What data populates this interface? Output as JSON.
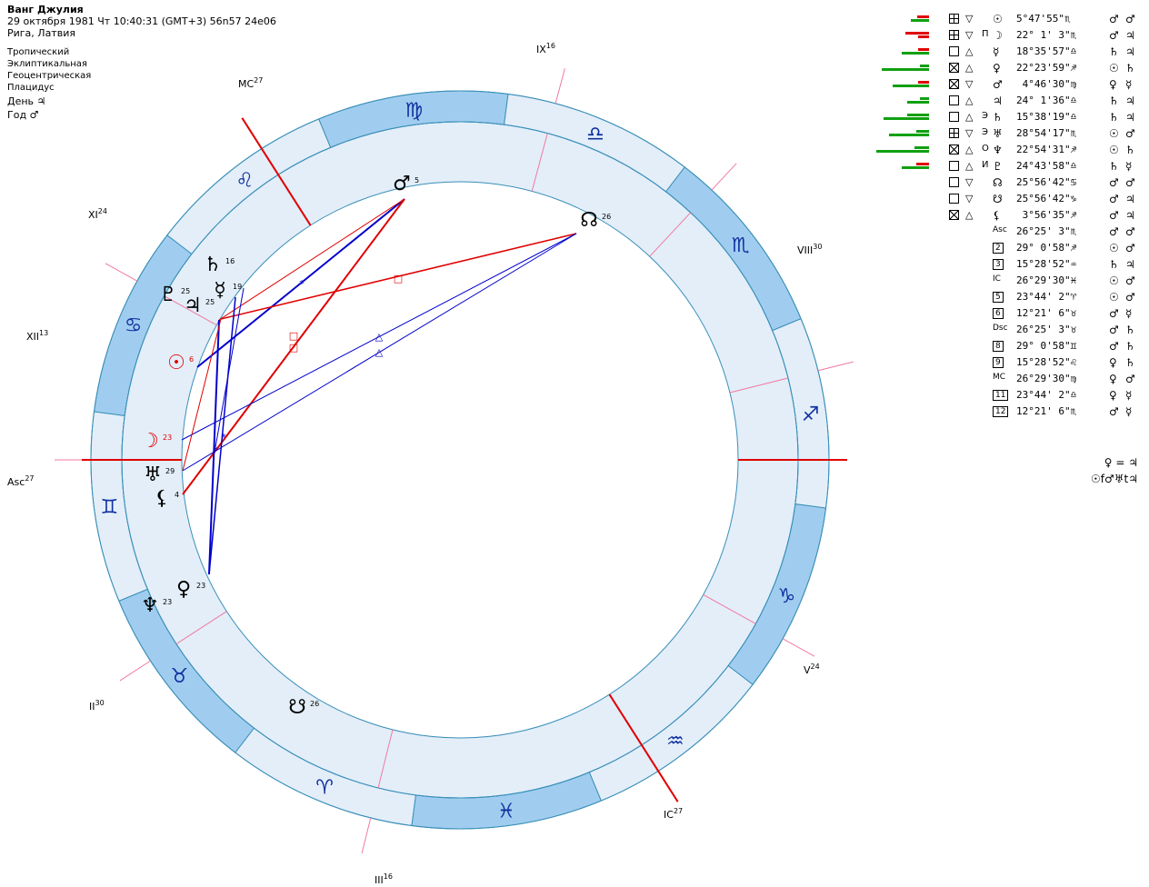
{
  "header": {
    "name": "Ванг Джулия",
    "datetime": "29 октября 1981  Чт  10:40:31 (GMT+3) 56n57  24e06",
    "place": "Рига, Латвия",
    "settings": [
      "Тропический",
      "Эклиптикальная",
      "Геоцентрическая",
      "Плацидус"
    ],
    "day_label": "День ♃",
    "year_label": "Год ♂"
  },
  "wheel": {
    "signs": [
      "♍",
      "♌",
      "♋",
      "♊",
      "♉",
      "♈",
      "♓",
      "♒",
      "♑",
      "♐",
      "♏",
      "♎"
    ],
    "cusps": [
      {
        "label": "Asc",
        "deg": "27"
      },
      {
        "label": "II",
        "deg": "30"
      },
      {
        "label": "III",
        "deg": "16"
      },
      {
        "label": "IC",
        "deg": "27"
      },
      {
        "label": "V",
        "deg": "24"
      },
      {
        "label": "VIII",
        "deg": "30"
      },
      {
        "label": "IX",
        "deg": "16"
      },
      {
        "label": "MC",
        "deg": "27"
      },
      {
        "label": "XI",
        "deg": "24"
      },
      {
        "label": "XII",
        "deg": "13"
      }
    ],
    "planets": [
      {
        "glyph": "♂",
        "deg": "5",
        "color": "#000000"
      },
      {
        "glyph": "☊",
        "deg": "26",
        "color": "#000000"
      },
      {
        "glyph": "♄",
        "deg": "16",
        "color": "#000000"
      },
      {
        "glyph": "♇",
        "deg": "25",
        "color": "#000000"
      },
      {
        "glyph": "♃",
        "deg": "25",
        "color": "#000000"
      },
      {
        "glyph": "☿",
        "deg": "19",
        "color": "#000000"
      },
      {
        "glyph": "☉",
        "deg": "6",
        "color": "#e00000"
      },
      {
        "glyph": "☽",
        "deg": "23",
        "color": "#e00000"
      },
      {
        "glyph": "♅",
        "deg": "29",
        "color": "#000000"
      },
      {
        "glyph": "⚸",
        "deg": "4",
        "color": "#000000"
      },
      {
        "glyph": "♀",
        "deg": "23",
        "color": "#000000"
      },
      {
        "glyph": "♆",
        "deg": "23",
        "color": "#000000"
      },
      {
        "glyph": "☋",
        "deg": "26",
        "color": "#000000"
      }
    ],
    "aspect_glyphs": [
      "*",
      "□",
      "□",
      "□",
      "△",
      "△",
      "*",
      "*"
    ]
  },
  "table": {
    "planets": [
      {
        "box": "cross",
        "tri": "▽",
        "mark": "",
        "glyph": "☉",
        "pos": "5°47'55\"♏",
        "r1": "♂",
        "r2": "♂"
      },
      {
        "box": "cross",
        "tri": "▽",
        "mark": "П",
        "glyph": "☽",
        "pos": "22° 1' 3\"♏",
        "r1": "♂",
        "r2": "♃"
      },
      {
        "box": "plain",
        "tri": "△",
        "mark": "",
        "glyph": "☿",
        "pos": "18°35'57\"♎",
        "r1": "♄",
        "r2": "♃"
      },
      {
        "box": "x",
        "tri": "△",
        "mark": "",
        "glyph": "♀",
        "pos": "22°23'59\"♐",
        "r1": "☉",
        "r2": "♄"
      },
      {
        "box": "x",
        "tri": "▽",
        "mark": "",
        "glyph": "♂",
        "pos": " 4°46'30\"♍",
        "r1": "♀",
        "r2": "☿"
      },
      {
        "box": "plain",
        "tri": "△",
        "mark": "",
        "glyph": "♃",
        "pos": "24° 1'36\"♎",
        "r1": "♄",
        "r2": "♃"
      },
      {
        "box": "plain",
        "tri": "△",
        "mark": "Э",
        "glyph": "♄",
        "pos": "15°38'19\"♎",
        "r1": "♄",
        "r2": "♃"
      },
      {
        "box": "cross",
        "tri": "▽",
        "mark": "Э",
        "glyph": "♅",
        "pos": "28°54'17\"♏",
        "r1": "☉",
        "r2": "♂"
      },
      {
        "box": "x",
        "tri": "△",
        "mark": "О",
        "glyph": "♆",
        "pos": "22°54'31\"♐",
        "r1": "☉",
        "r2": "♄"
      },
      {
        "box": "plain",
        "tri": "△",
        "mark": "И",
        "glyph": "♇",
        "pos": "24°43'58\"♎",
        "r1": "♄",
        "r2": "☿"
      },
      {
        "box": "plain",
        "tri": "▽",
        "mark": "",
        "glyph": "☊",
        "pos": "25°56'42\"♋",
        "r1": "♂",
        "r2": "♂"
      },
      {
        "box": "plain",
        "tri": "▽",
        "mark": "",
        "glyph": "☋",
        "pos": "25°56'42\"♑",
        "r1": "♂",
        "r2": "♃"
      },
      {
        "box": "x",
        "tri": "△",
        "mark": "",
        "glyph": "⚸",
        "pos": " 3°56'35\"♐",
        "r1": "♂",
        "r2": "♃"
      }
    ],
    "cusps": [
      {
        "label": "Asc",
        "boxed": false,
        "pos": "26°25' 3\"♏",
        "r1": "♂",
        "r2": "♂"
      },
      {
        "label": "2",
        "boxed": true,
        "pos": "29° 0'58\"♐",
        "r1": "☉",
        "r2": "♂"
      },
      {
        "label": "3",
        "boxed": true,
        "pos": "15°28'52\"♒",
        "r1": "♄",
        "r2": "♃"
      },
      {
        "label": "IC",
        "boxed": false,
        "pos": "26°29'30\"♓",
        "r1": "☉",
        "r2": "♂"
      },
      {
        "label": "5",
        "boxed": true,
        "pos": "23°44' 2\"♈",
        "r1": "☉",
        "r2": "♂"
      },
      {
        "label": "6",
        "boxed": true,
        "pos": "12°21' 6\"♉",
        "r1": "♂",
        "r2": "☿"
      },
      {
        "label": "Dsc",
        "boxed": false,
        "pos": "26°25' 3\"♉",
        "r1": "♂",
        "r2": "♄"
      },
      {
        "label": "8",
        "boxed": true,
        "pos": "29° 0'58\"♊",
        "r1": "♂",
        "r2": "♄"
      },
      {
        "label": "9",
        "boxed": true,
        "pos": "15°28'52\"♌",
        "r1": "♀",
        "r2": "♄"
      },
      {
        "label": "MC",
        "boxed": false,
        "pos": "26°29'30\"♍",
        "r1": "♀",
        "r2": "♂"
      },
      {
        "label": "11",
        "boxed": true,
        "pos": "23°44' 2\"♎",
        "r1": "♀",
        "r2": "☿"
      },
      {
        "label": "12",
        "boxed": true,
        "pos": "12°21' 6\"♏",
        "r1": "♂",
        "r2": "☿"
      }
    ]
  },
  "notes": {
    "line1": "♀ = ♃",
    "line2": "☉f♂♅t♃"
  },
  "colors": {
    "ring_light": "#e3eef9",
    "ring_dark": "#a0cdef",
    "ring_stroke": "#3a8fb8",
    "house_line": "#f07aa0",
    "axis": "#e00000",
    "aspect_blue": "#0000cc",
    "aspect_red": "#e00000",
    "bar_green": "#11a011",
    "bar_red": "#e00000"
  }
}
